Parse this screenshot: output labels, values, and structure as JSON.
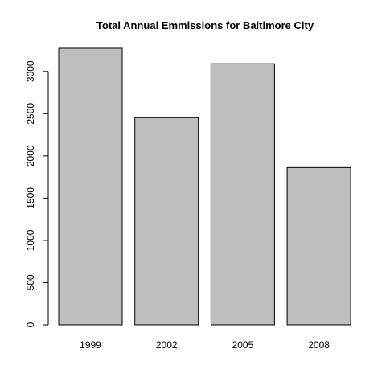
{
  "chart_data": {
    "type": "bar",
    "title": "Total Annual Emmissions for Baltimore City",
    "xlabel": "",
    "ylabel": "",
    "categories": [
      "1999",
      "2002",
      "2005",
      "2008"
    ],
    "values": [
      3274,
      2453,
      3091,
      1862
    ],
    "ylim": [
      0,
      3274
    ],
    "yticks": [
      0,
      500,
      1000,
      1500,
      2000,
      2500,
      3000
    ],
    "grid": false,
    "legend": "none",
    "bar_color": "#bebebe",
    "bar_border_color": "#000000"
  }
}
